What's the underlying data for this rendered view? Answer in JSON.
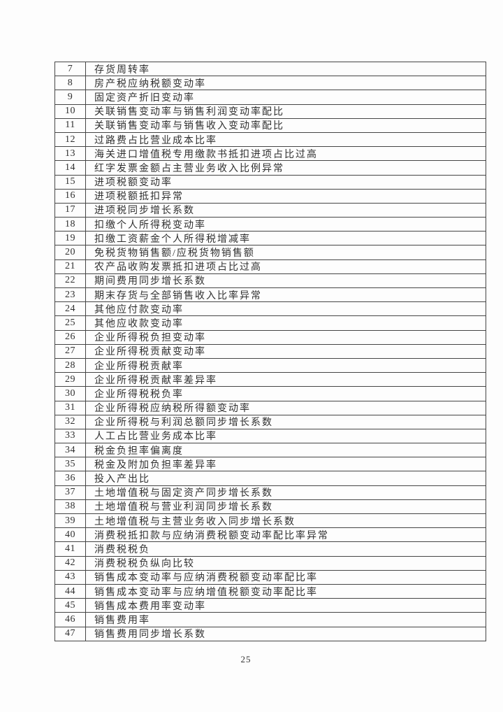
{
  "page": {
    "number": "25",
    "background_color": "#fdfdfd",
    "border_color": "#454545",
    "text_color": "#2f2f2f"
  },
  "table": {
    "rows": [
      {
        "num": "7",
        "label": "存货周转率"
      },
      {
        "num": "8",
        "label": "房产税应纳税额变动率"
      },
      {
        "num": "9",
        "label": "固定资产折旧变动率"
      },
      {
        "num": "10",
        "label": "关联销售变动率与销售利润变动率配比"
      },
      {
        "num": "11",
        "label": "关联销售变动率与销售收入变动率配比"
      },
      {
        "num": "12",
        "label": "过路费占比营业成本比率"
      },
      {
        "num": "13",
        "label": "海关进口增值税专用缴款书抵扣进项占比过高"
      },
      {
        "num": "14",
        "label": "红字发票金额占主营业务收入比例异常"
      },
      {
        "num": "15",
        "label": "进项税额变动率"
      },
      {
        "num": "16",
        "label": "进项税额抵扣异常"
      },
      {
        "num": "17",
        "label": "进项税同步增长系数"
      },
      {
        "num": "18",
        "label": "扣缴个人所得税变动率"
      },
      {
        "num": "19",
        "label": "扣缴工资薪金个人所得税增减率"
      },
      {
        "num": "20",
        "label": "免税货物销售额/应税货物销售额"
      },
      {
        "num": "21",
        "label": "农产品收购发票抵扣进项占比过高"
      },
      {
        "num": "22",
        "label": "期间费用同步增长系数"
      },
      {
        "num": "23",
        "label": "期末存货与全部销售收入比率异常"
      },
      {
        "num": "24",
        "label": "其他应付款变动率"
      },
      {
        "num": "25",
        "label": "其他应收款变动率"
      },
      {
        "num": "26",
        "label": "企业所得税负担变动率"
      },
      {
        "num": "27",
        "label": "企业所得税贡献变动率"
      },
      {
        "num": "28",
        "label": "企业所得税贡献率"
      },
      {
        "num": "29",
        "label": "企业所得税贡献率差异率"
      },
      {
        "num": "30",
        "label": "企业所得税税负率"
      },
      {
        "num": "31",
        "label": "企业所得税应纳税所得额变动率"
      },
      {
        "num": "32",
        "label": "企业所得税与利润总额同步增长系数"
      },
      {
        "num": "33",
        "label": "人工占比营业务成本比率"
      },
      {
        "num": "34",
        "label": "税金负担率偏离度"
      },
      {
        "num": "35",
        "label": "税金及附加负担率差异率"
      },
      {
        "num": "36",
        "label": "投入产出比"
      },
      {
        "num": "37",
        "label": "土地增值税与固定资产同步增长系数"
      },
      {
        "num": "38",
        "label": "土地增值税与营业利润同步增长系数"
      },
      {
        "num": "39",
        "label": "土地增值税与主营业务收入同步增长系数"
      },
      {
        "num": "40",
        "label": "消费税抵扣款与应纳消费税额变动率配比率异常"
      },
      {
        "num": "41",
        "label": "消费税税负"
      },
      {
        "num": "42",
        "label": "消费税税负纵向比较"
      },
      {
        "num": "43",
        "label": "销售成本变动率与应纳消费税额变动率配比率"
      },
      {
        "num": "44",
        "label": "销售成本变动率与应纳增值税额变动率配比率"
      },
      {
        "num": "45",
        "label": "销售成本费用率变动率"
      },
      {
        "num": "46",
        "label": "销售费用率"
      },
      {
        "num": "47",
        "label": "销售费用同步增长系数"
      }
    ]
  }
}
